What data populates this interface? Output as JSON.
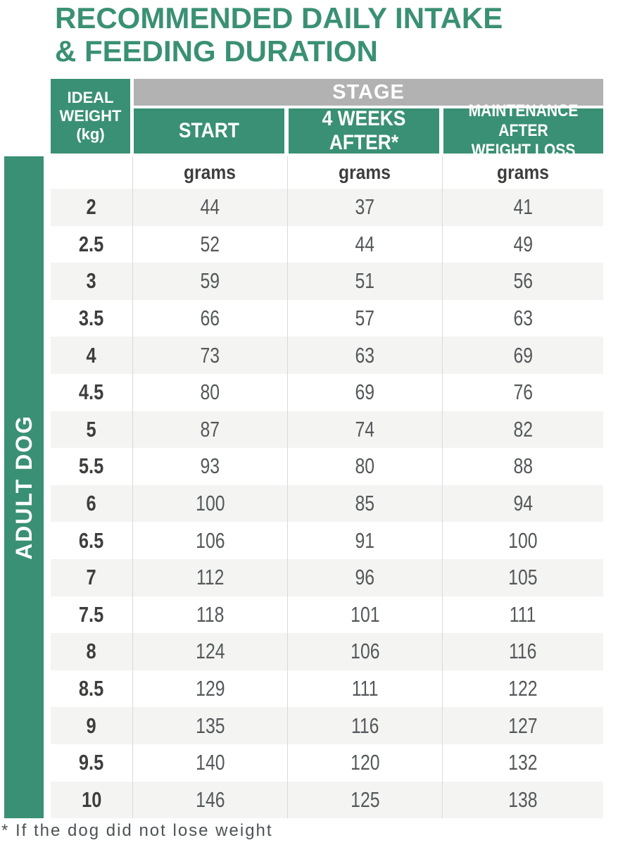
{
  "title": {
    "line1": "RECOMMENDED DAILY INTAKE",
    "line2": "& FEEDING DURATION"
  },
  "sidebar": {
    "label": "ADULT DOG"
  },
  "table": {
    "corner_header": "IDEAL\nWEIGHT\n(kg)",
    "stage_header": "STAGE",
    "columns": {
      "start": "START",
      "after4w": "4 WEEKS AFTER*",
      "maintenance": "MAINTENANCE AFTER\nWEIGHT LOSS"
    },
    "units": {
      "start": "grams",
      "after4w": "grams",
      "maintenance": "grams"
    },
    "rows": [
      {
        "weight": "2",
        "start": "44",
        "after4w": "37",
        "maintenance": "41"
      },
      {
        "weight": "2.5",
        "start": "52",
        "after4w": "44",
        "maintenance": "49"
      },
      {
        "weight": "3",
        "start": "59",
        "after4w": "51",
        "maintenance": "56"
      },
      {
        "weight": "3.5",
        "start": "66",
        "after4w": "57",
        "maintenance": "63"
      },
      {
        "weight": "4",
        "start": "73",
        "after4w": "63",
        "maintenance": "69"
      },
      {
        "weight": "4.5",
        "start": "80",
        "after4w": "69",
        "maintenance": "76"
      },
      {
        "weight": "5",
        "start": "87",
        "after4w": "74",
        "maintenance": "82"
      },
      {
        "weight": "5.5",
        "start": "93",
        "after4w": "80",
        "maintenance": "88"
      },
      {
        "weight": "6",
        "start": "100",
        "after4w": "85",
        "maintenance": "94"
      },
      {
        "weight": "6.5",
        "start": "106",
        "after4w": "91",
        "maintenance": "100"
      },
      {
        "weight": "7",
        "start": "112",
        "after4w": "96",
        "maintenance": "105"
      },
      {
        "weight": "7.5",
        "start": "118",
        "after4w": "101",
        "maintenance": "111"
      },
      {
        "weight": "8",
        "start": "124",
        "after4w": "106",
        "maintenance": "116"
      },
      {
        "weight": "8.5",
        "start": "129",
        "after4w": "111",
        "maintenance": "122"
      },
      {
        "weight": "9",
        "start": "135",
        "after4w": "116",
        "maintenance": "127"
      },
      {
        "weight": "9.5",
        "start": "140",
        "after4w": "120",
        "maintenance": "132"
      },
      {
        "weight": "10",
        "start": "146",
        "after4w": "125",
        "maintenance": "138"
      }
    ]
  },
  "footnote": "* If the dog did not lose weight",
  "colors": {
    "green": "#3A9074",
    "stage_gray": "#B2B2B2",
    "row_alt": "#F4F4F3",
    "divider": "#D9D9D9",
    "heading_text": "#FFFFFF",
    "value_text": "#55585A",
    "label_text": "#3E3E3D",
    "footnote_text": "#4C5356"
  }
}
